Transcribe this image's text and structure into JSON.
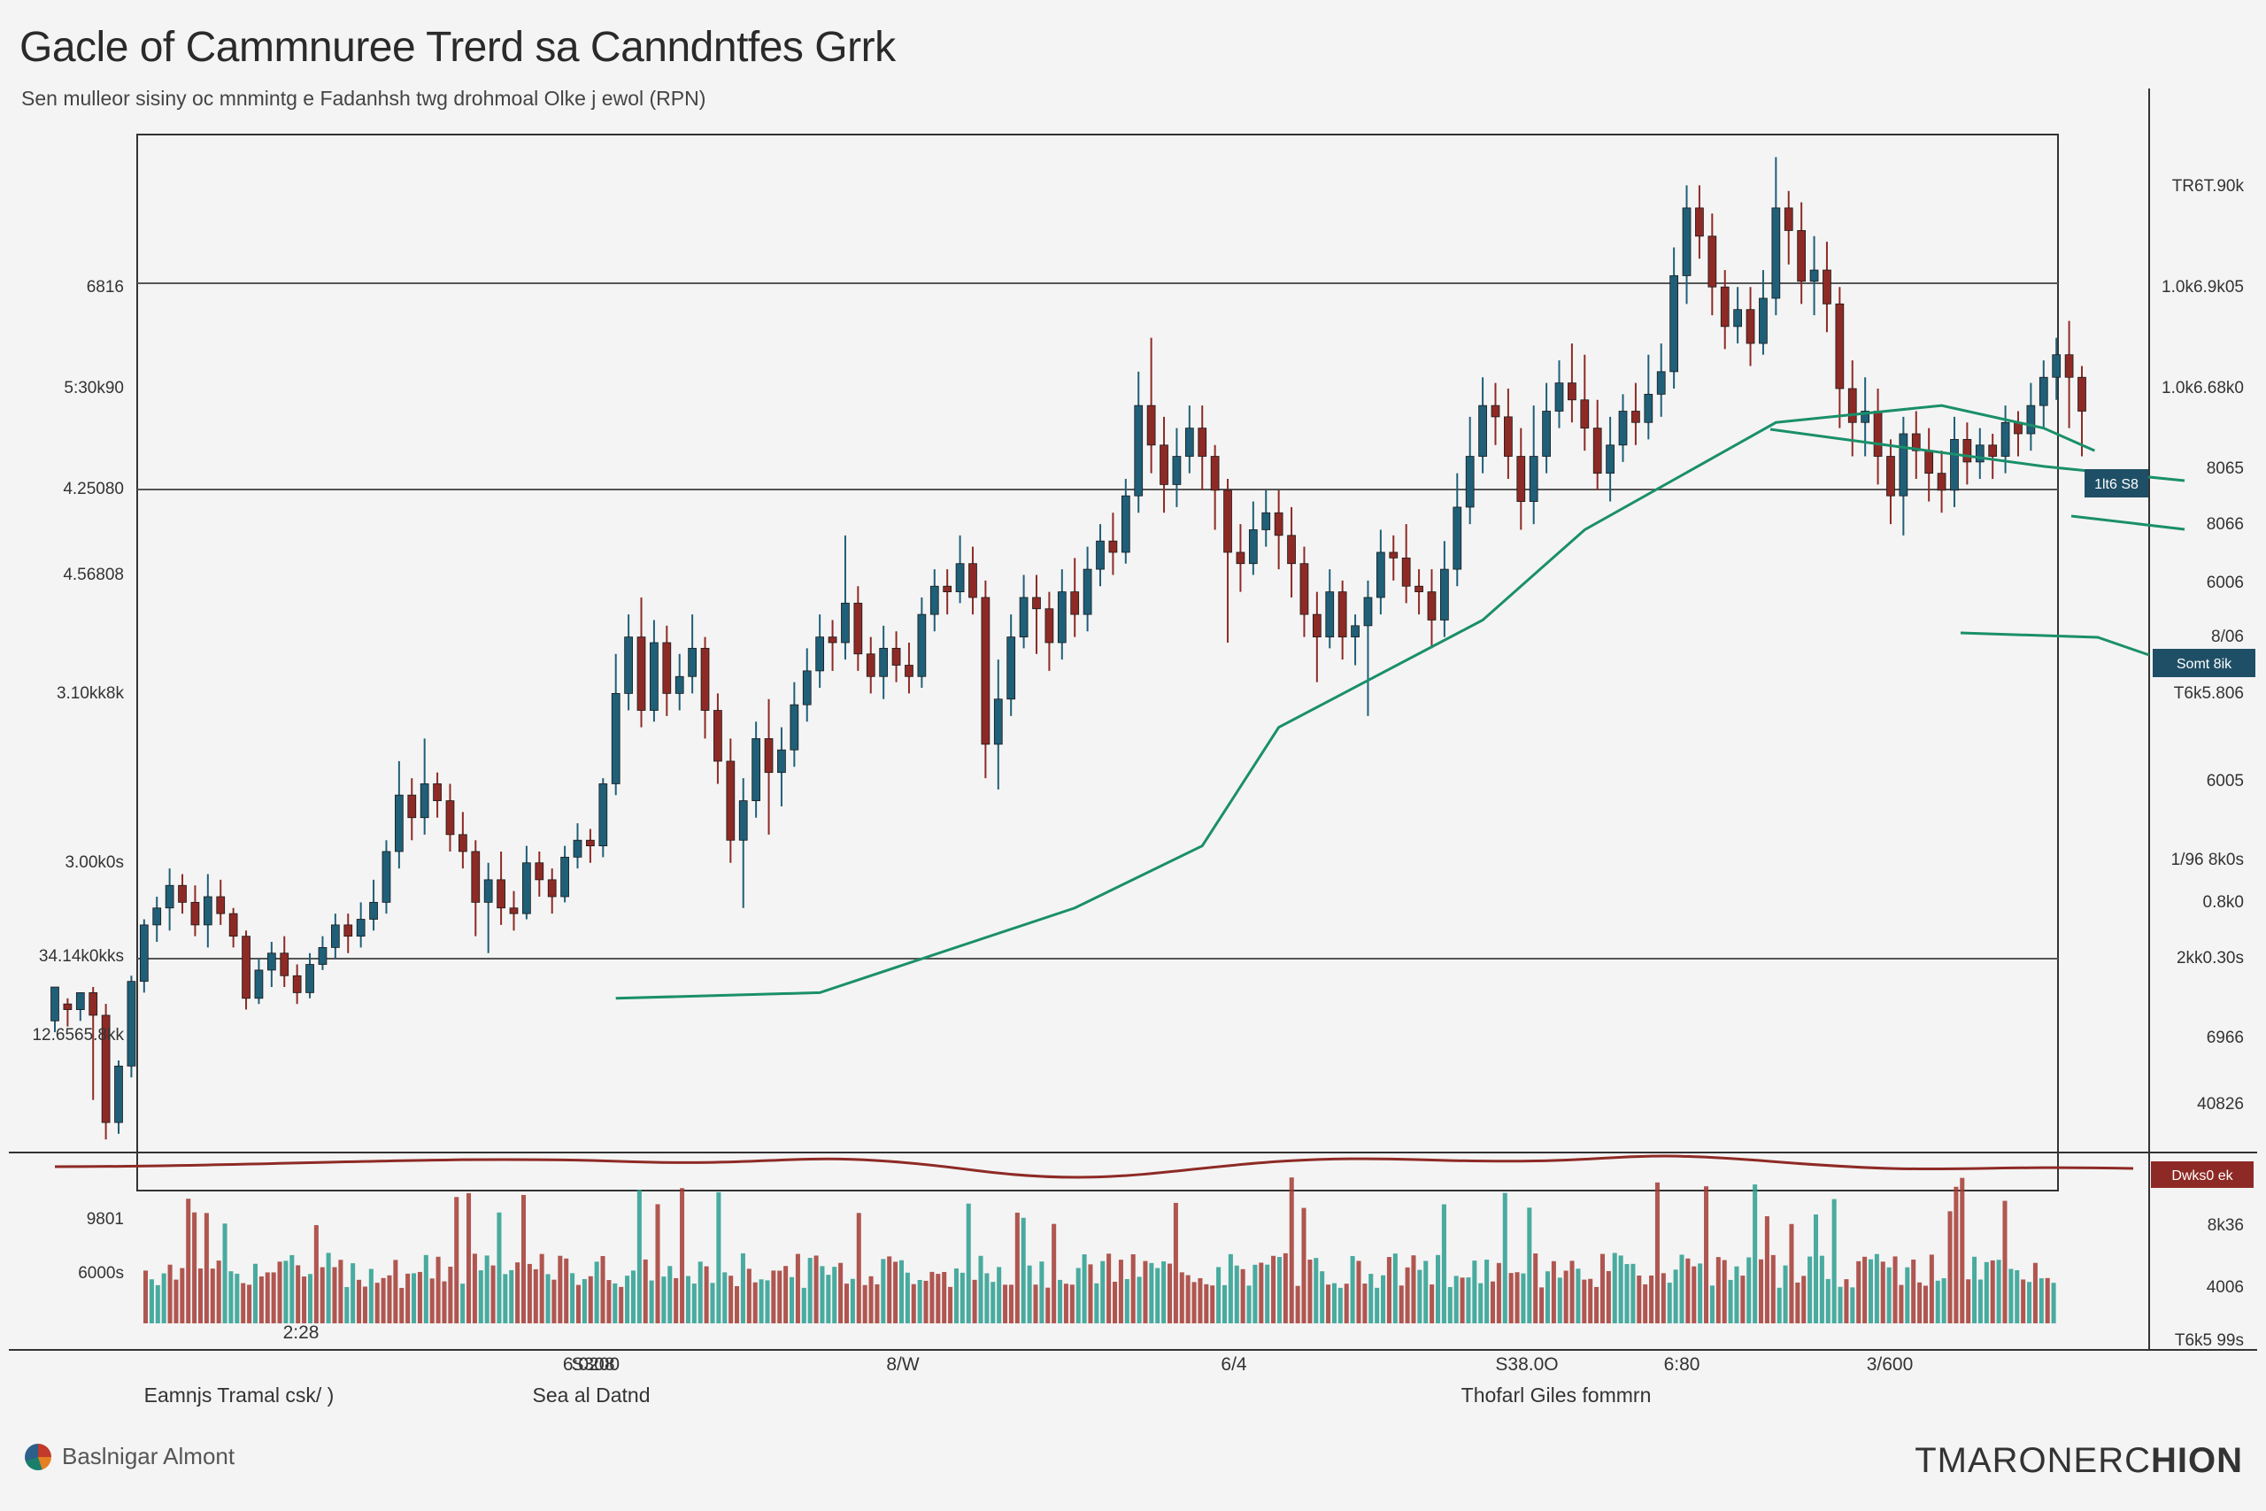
{
  "title": "Gacle of Cammnuree Trerd sa Canndntfes Grrk",
  "subtitle": "Sen mulleor sisiny oc mnmintg e Fadanhsh twg drohmoal Olke j ewol (RPN)",
  "footer": {
    "brand": "Baslnigar Almont",
    "brand_bold": "Ba",
    "watermark_light": "TMARONERC",
    "watermark_bold": "HION"
  },
  "colors": {
    "up": "#1f5f78",
    "down": "#8e2a25",
    "volume_up": "#2a9d8f",
    "volume_down": "#a33a33",
    "ma_green": "#1a8f6a",
    "ma_red": "#8e2a25",
    "grid": "#555555",
    "tag_dark": "#1f4f66",
    "tag_red": "#8e2a25"
  },
  "chart_data": {
    "type": "candlestick",
    "y_ticks_left": [
      "6816",
      "5:30k90",
      "4.25080",
      "4.56808",
      "3.10kk8k",
      "3.00k0s",
      "34.14k0kks",
      "12.6565.8kk",
      "9801",
      "6000s"
    ],
    "y_ticks_right": [
      "TR6T.90k",
      "1.0k6.9k05",
      "1.0k6.68k0",
      "8065",
      "8066",
      "6006",
      "8/06",
      "T6k5.806",
      "6005",
      "1/96 8k0s",
      "0.8k0",
      "2kk0.30s",
      "6966",
      "40826",
      "8k36",
      "4006",
      "T6k5 99s"
    ],
    "x_ticks": [
      "2:28",
      "S308",
      "6:0200",
      "8/W",
      "6/4",
      "S38.0O",
      "6:80",
      "3/600"
    ],
    "x_group_labels": [
      "Eamnjs Tramal csk/ )",
      "Sea al Datnd",
      "Thofarl Giles fommrn"
    ],
    "tags": [
      "1lt6 S8",
      "Somt 8ik",
      "Dwks0 ek"
    ],
    "candles_ohlc": [
      [
        -4,
        8,
        -8,
        2
      ],
      [
        2,
        0,
        -6,
        4
      ],
      [
        0,
        6,
        -4,
        6
      ],
      [
        6,
        -2,
        -32,
        8
      ],
      [
        -2,
        -40,
        -46,
        2
      ],
      [
        -40,
        -20,
        -44,
        -18
      ],
      [
        -20,
        10,
        -24,
        12
      ],
      [
        10,
        30,
        6,
        32
      ],
      [
        30,
        36,
        24,
        40
      ],
      [
        36,
        44,
        28,
        50
      ],
      [
        44,
        38,
        34,
        48
      ],
      [
        38,
        30,
        26,
        44
      ],
      [
        30,
        40,
        22,
        48
      ],
      [
        40,
        34,
        30,
        46
      ],
      [
        34,
        26,
        22,
        36
      ],
      [
        26,
        4,
        0,
        28
      ],
      [
        4,
        14,
        2,
        18
      ],
      [
        14,
        20,
        8,
        24
      ],
      [
        20,
        12,
        8,
        26
      ],
      [
        12,
        6,
        2,
        16
      ],
      [
        6,
        16,
        4,
        20
      ],
      [
        16,
        22,
        14,
        26
      ],
      [
        22,
        30,
        18,
        34
      ],
      [
        30,
        26,
        20,
        34
      ],
      [
        26,
        32,
        22,
        38
      ],
      [
        32,
        38,
        28,
        46
      ],
      [
        38,
        56,
        34,
        60
      ],
      [
        56,
        76,
        50,
        88
      ],
      [
        76,
        68,
        60,
        82
      ],
      [
        68,
        80,
        62,
        96
      ],
      [
        80,
        74,
        68,
        84
      ],
      [
        74,
        62,
        56,
        80
      ],
      [
        62,
        56,
        50,
        70
      ],
      [
        56,
        38,
        26,
        60
      ],
      [
        38,
        46,
        20,
        52
      ],
      [
        46,
        36,
        30,
        56
      ],
      [
        36,
        34,
        28,
        42
      ],
      [
        34,
        52,
        32,
        58
      ],
      [
        52,
        46,
        40,
        56
      ],
      [
        46,
        40,
        34,
        50
      ],
      [
        40,
        54,
        38,
        58
      ],
      [
        54,
        60,
        50,
        66
      ],
      [
        60,
        58,
        52,
        64
      ],
      [
        58,
        80,
        54,
        82
      ],
      [
        80,
        112,
        76,
        126
      ],
      [
        112,
        132,
        106,
        140
      ],
      [
        132,
        106,
        100,
        146
      ],
      [
        106,
        130,
        102,
        138
      ],
      [
        130,
        112,
        104,
        136
      ],
      [
        112,
        118,
        106,
        126
      ],
      [
        118,
        128,
        112,
        140
      ],
      [
        128,
        106,
        96,
        132
      ],
      [
        106,
        88,
        80,
        112
      ],
      [
        88,
        60,
        52,
        96
      ],
      [
        60,
        74,
        36,
        82
      ],
      [
        74,
        96,
        68,
        102
      ],
      [
        96,
        84,
        62,
        110
      ],
      [
        84,
        92,
        72,
        100
      ],
      [
        92,
        108,
        86,
        116
      ],
      [
        108,
        120,
        102,
        128
      ],
      [
        120,
        132,
        114,
        140
      ],
      [
        132,
        130,
        120,
        138
      ],
      [
        130,
        144,
        124,
        168
      ],
      [
        144,
        126,
        120,
        150
      ],
      [
        126,
        118,
        112,
        132
      ],
      [
        118,
        128,
        110,
        136
      ],
      [
        128,
        122,
        116,
        134
      ],
      [
        122,
        118,
        112,
        130
      ],
      [
        118,
        140,
        114,
        146
      ],
      [
        140,
        150,
        134,
        156
      ],
      [
        150,
        148,
        140,
        156
      ],
      [
        148,
        158,
        144,
        168
      ],
      [
        158,
        146,
        140,
        164
      ],
      [
        146,
        94,
        82,
        152
      ],
      [
        94,
        110,
        78,
        124
      ],
      [
        110,
        132,
        104,
        140
      ],
      [
        132,
        146,
        128,
        154
      ],
      [
        146,
        142,
        126,
        154
      ],
      [
        142,
        130,
        120,
        148
      ],
      [
        130,
        148,
        124,
        156
      ],
      [
        148,
        140,
        132,
        160
      ],
      [
        140,
        156,
        134,
        164
      ],
      [
        156,
        166,
        150,
        172
      ],
      [
        166,
        162,
        154,
        176
      ],
      [
        162,
        182,
        158,
        188
      ],
      [
        182,
        214,
        176,
        226
      ],
      [
        214,
        200,
        190,
        238
      ],
      [
        200,
        186,
        176,
        210
      ],
      [
        186,
        196,
        178,
        206
      ],
      [
        196,
        206,
        190,
        214
      ],
      [
        206,
        196,
        184,
        214
      ],
      [
        196,
        184,
        170,
        200
      ],
      [
        184,
        162,
        130,
        188
      ],
      [
        162,
        158,
        148,
        172
      ],
      [
        158,
        170,
        154,
        180
      ],
      [
        170,
        176,
        164,
        184
      ],
      [
        176,
        168,
        156,
        184
      ],
      [
        168,
        158,
        146,
        178
      ],
      [
        158,
        140,
        132,
        164
      ],
      [
        140,
        132,
        116,
        148
      ],
      [
        132,
        148,
        128,
        156
      ],
      [
        148,
        132,
        124,
        152
      ],
      [
        132,
        136,
        122,
        140
      ],
      [
        136,
        146,
        104,
        152
      ],
      [
        146,
        162,
        140,
        170
      ],
      [
        162,
        160,
        152,
        168
      ],
      [
        160,
        150,
        144,
        172
      ],
      [
        150,
        148,
        140,
        156
      ],
      [
        148,
        138,
        128,
        156
      ],
      [
        138,
        156,
        132,
        166
      ],
      [
        156,
        178,
        150,
        190
      ],
      [
        178,
        196,
        172,
        210
      ],
      [
        196,
        214,
        190,
        224
      ],
      [
        214,
        210,
        200,
        222
      ],
      [
        210,
        196,
        188,
        220
      ],
      [
        196,
        180,
        170,
        206
      ],
      [
        180,
        196,
        172,
        214
      ],
      [
        196,
        212,
        190,
        222
      ],
      [
        212,
        222,
        206,
        230
      ],
      [
        222,
        216,
        208,
        236
      ],
      [
        216,
        206,
        198,
        232
      ],
      [
        206,
        190,
        184,
        216
      ],
      [
        190,
        200,
        180,
        210
      ],
      [
        200,
        212,
        194,
        218
      ],
      [
        212,
        208,
        200,
        222
      ],
      [
        208,
        218,
        202,
        232
      ],
      [
        218,
        226,
        210,
        236
      ],
      [
        226,
        260,
        220,
        270
      ],
      [
        260,
        284,
        250,
        292
      ],
      [
        284,
        274,
        266,
        292
      ],
      [
        274,
        256,
        246,
        282
      ],
      [
        256,
        242,
        234,
        262
      ],
      [
        242,
        248,
        236,
        256
      ],
      [
        248,
        236,
        228,
        256
      ],
      [
        236,
        252,
        232,
        262
      ],
      [
        252,
        284,
        246,
        302
      ],
      [
        284,
        276,
        264,
        290
      ],
      [
        276,
        258,
        250,
        286
      ],
      [
        258,
        262,
        246,
        274
      ],
      [
        262,
        250,
        240,
        272
      ],
      [
        250,
        220,
        206,
        256
      ],
      [
        220,
        208,
        196,
        230
      ],
      [
        208,
        212,
        196,
        224
      ],
      [
        212,
        196,
        186,
        220
      ],
      [
        196,
        182,
        172,
        202
      ],
      [
        182,
        204,
        168,
        210
      ],
      [
        204,
        198,
        188,
        212
      ],
      [
        198,
        190,
        180,
        206
      ],
      [
        190,
        184,
        176,
        198
      ],
      [
        184,
        202,
        178,
        210
      ],
      [
        202,
        194,
        186,
        208
      ],
      [
        194,
        200,
        188,
        206
      ],
      [
        200,
        196,
        188,
        204
      ],
      [
        196,
        208,
        190,
        214
      ],
      [
        208,
        204,
        196,
        212
      ],
      [
        204,
        214,
        198,
        222
      ],
      [
        214,
        224,
        206,
        230
      ],
      [
        224,
        232,
        216,
        238
      ],
      [
        232,
        224,
        206,
        244
      ],
      [
        224,
        212,
        196,
        228
      ]
    ],
    "volume": [],
    "ma_green": [
      [
        44,
        4
      ],
      [
        60,
        6
      ],
      [
        80,
        36
      ],
      [
        90,
        58
      ],
      [
        96,
        100
      ],
      [
        112,
        138
      ],
      [
        120,
        170
      ],
      [
        135,
        208
      ],
      [
        148,
        214
      ],
      [
        156,
        206
      ],
      [
        160,
        198
      ]
    ],
    "ma_red": [
      [
        0,
        2
      ],
      [
        20,
        0
      ],
      [
        40,
        -2
      ],
      [
        60,
        2
      ],
      [
        80,
        0
      ],
      [
        100,
        2
      ],
      [
        120,
        0
      ],
      [
        140,
        2
      ],
      [
        160,
        0
      ]
    ],
    "ylim": [
      -50,
      310
    ],
    "grid": true
  }
}
